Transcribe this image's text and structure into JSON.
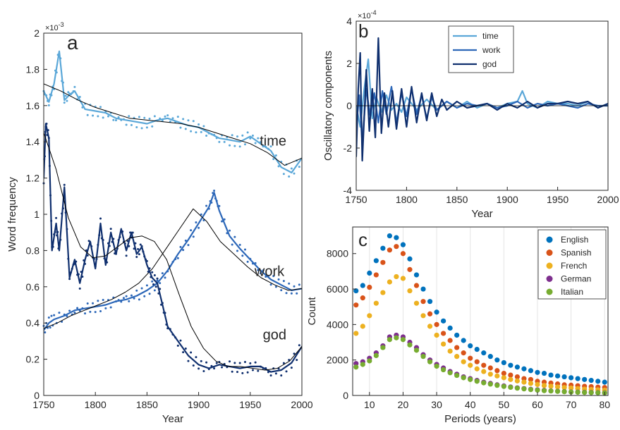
{
  "panels": {
    "a": {
      "letter": "a"
    },
    "b": {
      "letter": "b"
    },
    "c": {
      "letter": "c"
    }
  },
  "chart_data": [
    {
      "id": "a",
      "type": "line",
      "xlabel": "Year",
      "ylabel": "Word frequency",
      "xlim": [
        1750,
        2000
      ],
      "ylim": [
        0,
        0.002
      ],
      "exponent_label": "×10",
      "exponent_power": "-3",
      "xticks": [
        1750,
        1800,
        1850,
        1900,
        1950,
        2000
      ],
      "yticks": [
        0,
        0.0002,
        0.0004,
        0.0006,
        0.0008,
        0.001,
        0.0012,
        0.0014,
        0.0016,
        0.0018,
        0.002
      ],
      "ytick_labels": [
        "0",
        "0.2",
        "0.4",
        "0.6",
        "0.8",
        "1",
        "1.2",
        "1.4",
        "1.6",
        "1.8",
        "2"
      ],
      "series": [
        {
          "name": "time",
          "color": "#5aa7d8",
          "x": [
            1750,
            1755,
            1760,
            1765,
            1770,
            1775,
            1780,
            1790,
            1800,
            1810,
            1820,
            1830,
            1840,
            1850,
            1860,
            1870,
            1880,
            1890,
            1900,
            1910,
            1920,
            1930,
            1940,
            1950,
            1960,
            1970,
            1980,
            1990,
            2000
          ],
          "y": [
            0.00168,
            0.00162,
            0.00172,
            0.0019,
            0.00163,
            0.00166,
            0.00168,
            0.00158,
            0.00157,
            0.00156,
            0.00153,
            0.00152,
            0.00151,
            0.0015,
            0.00152,
            0.00153,
            0.00151,
            0.00149,
            0.00148,
            0.00145,
            0.00142,
            0.00141,
            0.0014,
            0.00143,
            0.00139,
            0.00135,
            0.00126,
            0.00123,
            0.00131
          ],
          "trend": [
            0.00172,
            0.00168,
            0.00163,
            0.00159,
            0.00156,
            0.00153,
            0.00152,
            0.00151,
            0.0015,
            0.00148,
            0.00145,
            0.00142,
            0.00139,
            0.00134,
            0.00127,
            0.00131
          ]
        },
        {
          "name": "work",
          "color": "#2c67b8",
          "x": [
            1750,
            1755,
            1760,
            1770,
            1780,
            1790,
            1800,
            1810,
            1820,
            1830,
            1840,
            1850,
            1860,
            1870,
            1880,
            1890,
            1900,
            1910,
            1915,
            1920,
            1930,
            1940,
            1950,
            1960,
            1970,
            1980,
            1990,
            2000
          ],
          "y": [
            0.00036,
            0.0004,
            0.00042,
            0.00044,
            0.00047,
            0.00048,
            0.00049,
            0.0005,
            0.00052,
            0.00053,
            0.00055,
            0.00058,
            0.00062,
            0.00069,
            0.00078,
            0.00086,
            0.00095,
            0.00104,
            0.00112,
            0.00102,
            0.00088,
            0.00081,
            0.00075,
            0.00069,
            0.00064,
            0.00061,
            0.00058,
            0.00059
          ],
          "trend": [
            0.00037,
            0.0004,
            0.00044,
            0.00047,
            0.0005,
            0.00053,
            0.00057,
            0.00062,
            0.0007,
            0.00081,
            0.00092,
            0.00103,
            0.00096,
            0.00085,
            0.00078,
            0.00071,
            0.00065,
            0.00061,
            0.00058,
            0.00059
          ]
        },
        {
          "name": "god",
          "color": "#0f2f6e",
          "x": [
            1750,
            1752,
            1755,
            1758,
            1762,
            1765,
            1770,
            1775,
            1780,
            1785,
            1790,
            1795,
            1800,
            1805,
            1810,
            1815,
            1820,
            1825,
            1830,
            1835,
            1840,
            1845,
            1850,
            1855,
            1860,
            1865,
            1870,
            1880,
            1890,
            1900,
            1910,
            1920,
            1930,
            1940,
            1950,
            1960,
            1970,
            1980,
            1990,
            2000
          ],
          "y": [
            0.0012,
            0.0015,
            0.00142,
            0.0008,
            0.00095,
            0.0008,
            0.00115,
            0.00065,
            0.00075,
            0.00062,
            0.00075,
            0.00085,
            0.0007,
            0.00095,
            0.00072,
            0.0009,
            0.00078,
            0.00092,
            0.0008,
            0.0009,
            0.00078,
            0.00082,
            0.00072,
            0.00065,
            0.00062,
            0.0005,
            0.00038,
            0.0003,
            0.00022,
            0.00017,
            0.00015,
            0.00017,
            0.00016,
            0.00015,
            0.00016,
            0.00016,
            0.00013,
            0.00014,
            0.00018,
            0.00027
          ],
          "trend": [
            0.00145,
            0.00125,
            0.00098,
            0.00082,
            0.00076,
            0.00077,
            0.00082,
            0.00087,
            0.00088,
            0.00085,
            0.00075,
            0.00056,
            0.00038,
            0.00026,
            0.00019,
            0.00016,
            0.00016,
            0.00015,
            0.00014,
            0.00015,
            0.00019,
            0.00027
          ]
        }
      ],
      "annotations": [
        {
          "text": "time",
          "x": 1985,
          "y": 0.00138
        },
        {
          "text": "work",
          "x": 1983,
          "y": 0.00066
        },
        {
          "text": "god",
          "x": 1985,
          "y": 0.00031
        }
      ]
    },
    {
      "id": "b",
      "type": "line",
      "xlabel": "Year",
      "ylabel": "Oscillatory components",
      "xlim": [
        1750,
        2000
      ],
      "ylim": [
        -0.0004,
        0.0004
      ],
      "exponent_label": "×10",
      "exponent_power": "-4",
      "xticks": [
        1750,
        1800,
        1850,
        1900,
        1950,
        2000
      ],
      "yticks": [
        -0.0004,
        -0.0002,
        0,
        0.0002,
        0.0004
      ],
      "ytick_labels": [
        "-4",
        "-2",
        "0",
        "2",
        "4"
      ],
      "legend": "top-right",
      "series": [
        {
          "name": "time",
          "color": "#5aa7d8",
          "x": [
            1750,
            1754,
            1758,
            1762,
            1766,
            1770,
            1775,
            1780,
            1785,
            1790,
            1795,
            1800,
            1810,
            1820,
            1830,
            1840,
            1850,
            1860,
            1870,
            1880,
            1890,
            1900,
            1910,
            1915,
            1920,
            1930,
            1940,
            1950,
            1960,
            1970,
            1980,
            1990,
            2000
          ],
          "y": [
            0,
            -0.0001,
            8e-05,
            0.00022,
            -6e-05,
            4e-05,
            -3e-05,
            5e-05,
            -2e-05,
            1e-05,
            -3e-05,
            4e-05,
            -2e-05,
            3e-05,
            -2e-05,
            2e-05,
            -1e-05,
            2e-05,
            -1e-05,
            1e-05,
            -1e-05,
            1e-05,
            2e-05,
            7e-05,
            1e-05,
            -1e-05,
            2e-05,
            1e-05,
            1e-05,
            0,
            2e-05,
            -1e-05,
            1e-05
          ]
        },
        {
          "name": "work",
          "color": "#2c67b8",
          "x": [
            1750,
            1753,
            1756,
            1760,
            1764,
            1768,
            1772,
            1776,
            1780,
            1785,
            1790,
            1795,
            1800,
            1805,
            1810,
            1815,
            1820,
            1825,
            1830,
            1840,
            1850,
            1860,
            1870,
            1880,
            1890,
            1900,
            1910,
            1920,
            1930,
            1940,
            1950,
            1960,
            1970,
            1980,
            1990,
            2000
          ],
          "y": [
            -0.0001,
            5e-05,
            -0.00018,
            8e-05,
            -5e-05,
            6e-05,
            -8e-05,
            7e-05,
            -4e-05,
            9e-05,
            -8e-05,
            6e-05,
            -5e-05,
            8e-05,
            -4e-05,
            5e-05,
            -6e-05,
            4e-05,
            -2e-05,
            2e-05,
            -1e-05,
            1e-05,
            0,
            1e-05,
            -1e-05,
            0,
            2e-05,
            -1e-05,
            1e-05,
            0,
            1e-05,
            0,
            -1e-05,
            1e-05,
            0,
            0
          ]
        },
        {
          "name": "god",
          "color": "#0f2f6e",
          "x": [
            1750,
            1752,
            1754,
            1756,
            1758,
            1760,
            1763,
            1766,
            1769,
            1772,
            1775,
            1778,
            1782,
            1786,
            1790,
            1795,
            1800,
            1805,
            1810,
            1815,
            1820,
            1825,
            1830,
            1835,
            1840,
            1850,
            1860,
            1870,
            1880,
            1890,
            1900,
            1910,
            1920,
            1930,
            1940,
            1950,
            1960,
            1970,
            1980,
            1990,
            2000
          ],
          "y": [
            -0.00024,
            8e-05,
            0.00025,
            -0.00026,
            -5e-05,
            0.00017,
            -0.00012,
            8e-05,
            -0.00015,
            0.00032,
            -0.00013,
            6e-05,
            -0.0001,
            7e-05,
            -0.00011,
            8e-05,
            -0.0001,
            9e-05,
            -8e-05,
            6e-05,
            -7e-05,
            6e-05,
            -5e-05,
            3e-05,
            -2e-05,
            2e-05,
            -1e-05,
            0,
            1e-05,
            -2e-05,
            1e-05,
            -1e-05,
            2e-05,
            -1e-05,
            1e-05,
            1e-05,
            2e-05,
            1e-05,
            2e-05,
            -1e-05,
            1e-05
          ]
        }
      ]
    },
    {
      "id": "c",
      "type": "scatter",
      "xlabel": "Periods (years)",
      "ylabel": "Count",
      "xlim": [
        5,
        81
      ],
      "ylim": [
        0,
        9500
      ],
      "xticks": [
        10,
        20,
        30,
        40,
        50,
        60,
        70,
        80
      ],
      "yticks": [
        0,
        2000,
        4000,
        6000,
        8000
      ],
      "grid": "x",
      "legend": "top-right",
      "series": [
        {
          "name": "English",
          "color": "#0072bd",
          "x": [
            6,
            8,
            10,
            12,
            14,
            16,
            18,
            20,
            22,
            24,
            26,
            28,
            30,
            32,
            34,
            36,
            38,
            40,
            42,
            44,
            46,
            48,
            50,
            52,
            54,
            56,
            58,
            60,
            62,
            64,
            66,
            68,
            70,
            72,
            74,
            76,
            78,
            80
          ],
          "y": [
            5900,
            6200,
            6900,
            7600,
            8300,
            9000,
            8900,
            8500,
            7700,
            6800,
            6000,
            5300,
            4700,
            4200,
            3800,
            3400,
            3100,
            2800,
            2600,
            2400,
            2200,
            2000,
            1850,
            1700,
            1600,
            1500,
            1400,
            1300,
            1250,
            1150,
            1100,
            1050,
            1000,
            950,
            900,
            850,
            800,
            750
          ]
        },
        {
          "name": "Spanish",
          "color": "#d95319",
          "x": [
            6,
            8,
            10,
            12,
            14,
            16,
            18,
            20,
            22,
            24,
            26,
            28,
            30,
            32,
            34,
            36,
            38,
            40,
            42,
            44,
            46,
            48,
            50,
            52,
            54,
            56,
            58,
            60,
            62,
            64,
            66,
            68,
            70,
            72,
            74,
            76,
            78,
            80
          ],
          "y": [
            5100,
            5500,
            6100,
            6800,
            7500,
            8200,
            8400,
            8000,
            7100,
            6200,
            5300,
            4600,
            4000,
            3500,
            3100,
            2700,
            2400,
            2100,
            1900,
            1700,
            1550,
            1400,
            1250,
            1150,
            1050,
            950,
            900,
            800,
            750,
            700,
            650,
            600,
            580,
            550,
            520,
            500,
            470,
            450
          ]
        },
        {
          "name": "French",
          "color": "#edb120",
          "x": [
            6,
            8,
            10,
            12,
            14,
            16,
            18,
            20,
            22,
            24,
            26,
            28,
            30,
            32,
            34,
            36,
            38,
            40,
            42,
            44,
            46,
            48,
            50,
            52,
            54,
            56,
            58,
            60,
            62,
            64,
            66,
            68,
            70,
            72,
            74,
            76,
            78,
            80
          ],
          "y": [
            3500,
            3900,
            4500,
            5200,
            5800,
            6400,
            6700,
            6600,
            5900,
            5200,
            4500,
            3900,
            3400,
            2900,
            2500,
            2200,
            1900,
            1700,
            1500,
            1350,
            1200,
            1100,
            1000,
            900,
            820,
            750,
            680,
            620,
            560,
            520,
            480,
            450,
            420,
            390,
            360,
            340,
            320,
            300
          ]
        },
        {
          "name": "German",
          "color": "#7e2f8e",
          "x": [
            6,
            8,
            10,
            12,
            14,
            16,
            18,
            20,
            22,
            24,
            26,
            28,
            30,
            32,
            34,
            36,
            38,
            40,
            42,
            44,
            46,
            48,
            50,
            52,
            54,
            56,
            58,
            60,
            62,
            64,
            66,
            68,
            70,
            72,
            74,
            76,
            78,
            80
          ],
          "y": [
            1800,
            1900,
            2100,
            2400,
            2800,
            3300,
            3400,
            3300,
            3000,
            2700,
            2300,
            2000,
            1750,
            1550,
            1350,
            1200,
            1050,
            950,
            850,
            750,
            680,
            600,
            540,
            480,
            430,
            390,
            350,
            320,
            290,
            260,
            240,
            220,
            200,
            190,
            180,
            170,
            160,
            150
          ]
        },
        {
          "name": "Italian",
          "color": "#77ac30",
          "x": [
            6,
            8,
            10,
            12,
            14,
            16,
            18,
            20,
            22,
            24,
            26,
            28,
            30,
            32,
            34,
            36,
            38,
            40,
            42,
            44,
            46,
            48,
            50,
            52,
            54,
            56,
            58,
            60,
            62,
            64,
            66,
            68,
            70,
            72,
            74,
            76,
            78,
            80
          ],
          "y": [
            1600,
            1750,
            1950,
            2250,
            2700,
            3150,
            3250,
            3150,
            2850,
            2550,
            2200,
            1900,
            1650,
            1450,
            1280,
            1130,
            1000,
            900,
            800,
            710,
            640,
            570,
            510,
            460,
            410,
            370,
            330,
            300,
            270,
            250,
            230,
            210,
            190,
            180,
            170,
            160,
            150,
            140
          ]
        }
      ]
    }
  ]
}
